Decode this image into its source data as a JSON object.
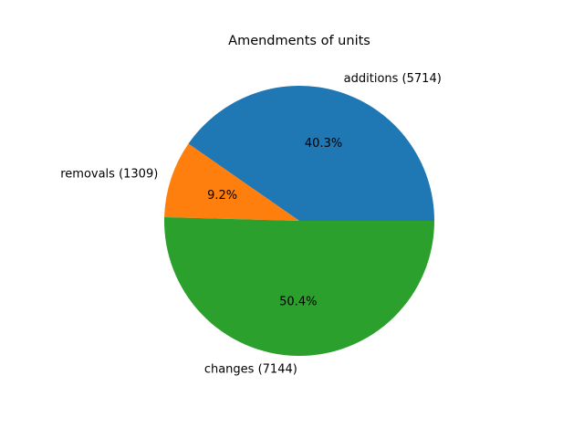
{
  "chart_data": {
    "type": "pie",
    "title": "Amendments of units",
    "slices": [
      {
        "label": "additions (5714)",
        "value": 5714,
        "percent_label": "40.3%",
        "color": "#1f77b4"
      },
      {
        "label": "removals (1309)",
        "value": 1309,
        "percent_label": "9.2%",
        "color": "#ff7f0e"
      },
      {
        "label": "changes (7144)",
        "value": 7144,
        "percent_label": "50.4%",
        "color": "#2ca02c"
      }
    ],
    "start_angle_deg": 0,
    "direction": "counterclockwise"
  }
}
